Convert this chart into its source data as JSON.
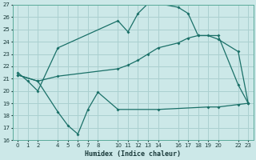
{
  "xlabel": "Humidex (Indice chaleur)",
  "bg_color": "#cce8e8",
  "grid_color": "#aad0d0",
  "line_color": "#1a7068",
  "xlim": [
    -0.5,
    23.5
  ],
  "ylim": [
    16,
    27
  ],
  "xticks": [
    0,
    1,
    2,
    4,
    5,
    6,
    7,
    8,
    10,
    11,
    12,
    13,
    14,
    16,
    17,
    18,
    19,
    20,
    22,
    23
  ],
  "yticks": [
    16,
    17,
    18,
    19,
    20,
    21,
    22,
    23,
    24,
    25,
    26,
    27
  ],
  "line1_x": [
    0,
    1,
    2,
    4,
    10,
    11,
    12,
    13,
    14,
    16,
    17,
    18,
    20,
    22,
    23
  ],
  "line1_y": [
    21.5,
    20.8,
    20.0,
    23.5,
    25.7,
    24.8,
    26.3,
    27.1,
    27.1,
    26.8,
    26.3,
    24.5,
    24.5,
    20.5,
    19.0
  ],
  "line2_x": [
    0,
    2,
    4,
    10,
    11,
    12,
    13,
    14,
    16,
    17,
    18,
    19,
    20,
    22,
    23
  ],
  "line2_y": [
    21.3,
    20.8,
    21.2,
    21.8,
    22.1,
    22.5,
    23.0,
    23.5,
    23.9,
    24.3,
    24.5,
    24.5,
    24.2,
    23.2,
    19.0
  ],
  "line3_x": [
    0,
    2,
    4,
    5,
    6,
    7,
    8,
    10,
    14,
    19,
    20,
    22,
    23
  ],
  "line3_y": [
    21.3,
    20.8,
    18.3,
    17.2,
    16.5,
    18.5,
    19.9,
    18.5,
    18.5,
    18.7,
    18.7,
    18.9,
    19.0
  ]
}
